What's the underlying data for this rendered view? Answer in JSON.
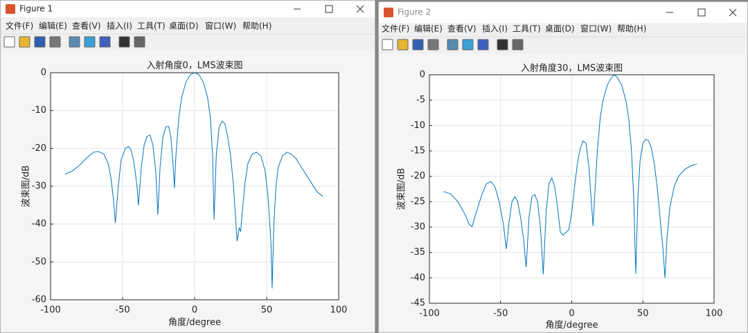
{
  "windows": [
    {
      "title": "Figure 1",
      "menu": [
        "文件(F)",
        "编辑(E)",
        "查看(V)",
        "插入(I)",
        "工具(T)",
        "桌面(D)",
        "窗口(W)",
        "帮助(H)"
      ]
    },
    {
      "title": "Figure 2",
      "menu": [
        "文件(F)",
        "编辑(E)",
        "查看(V)",
        "插入(I)",
        "工具(T)",
        "桌面(D)",
        "窗口(W)",
        "帮助(H)"
      ]
    }
  ],
  "chart_data": [
    {
      "type": "line",
      "title": "入射角度0，LMS波束图",
      "xlabel": "角度/degree",
      "ylabel": "波束图/dB",
      "color": "#0072bd",
      "grid": true,
      "xlim": [
        -100,
        100
      ],
      "xticks": [
        -100,
        -50,
        0,
        50,
        100
      ],
      "ylim": [
        -60,
        0
      ],
      "yticks": [
        -60,
        -50,
        -40,
        -30,
        -20,
        -10,
        0
      ],
      "x": [
        -90,
        -85,
        -80,
        -75,
        -70,
        -67,
        -63,
        -60,
        -58,
        -56.5,
        -55,
        -53,
        -51,
        -48,
        -46,
        -44,
        -42,
        -40,
        -39,
        -37,
        -35,
        -33,
        -31,
        -29,
        -27,
        -25.5,
        -24,
        -22,
        -20,
        -18,
        -16.5,
        -15,
        -14,
        -13,
        -11,
        -9,
        -6,
        -3,
        0,
        3,
        6,
        9,
        11,
        12.5,
        13.5,
        15,
        17,
        19,
        21,
        23,
        25,
        27,
        29.5,
        31,
        32,
        33,
        35,
        37,
        40,
        43,
        46,
        49,
        51,
        53,
        53.8,
        55,
        56.5,
        58,
        61,
        64,
        67,
        70,
        75,
        80,
        85,
        89
      ],
      "values": [
        -26.8,
        -26,
        -24.5,
        -22.5,
        -21,
        -20.8,
        -21.5,
        -24,
        -28,
        -33,
        -39.7,
        -30,
        -23,
        -20,
        -19.5,
        -20.5,
        -24,
        -30,
        -35,
        -25,
        -19,
        -16.8,
        -16.5,
        -19,
        -26,
        -37.5,
        -25,
        -17,
        -14.3,
        -14.2,
        -17,
        -24,
        -30.5,
        -22,
        -12,
        -6.5,
        -2.5,
        -0.5,
        0,
        -0.5,
        -2.5,
        -6.5,
        -12,
        -22,
        -38.8,
        -22,
        -14.5,
        -12.8,
        -13.5,
        -17,
        -22,
        -30,
        -44.5,
        -41,
        -42,
        -37,
        -29,
        -24,
        -21.5,
        -21,
        -22,
        -26,
        -33,
        -45,
        -57,
        -40,
        -30,
        -25,
        -22,
        -21,
        -21.5,
        -22.5,
        -25.5,
        -28.5,
        -31.5,
        -32.7
      ]
    },
    {
      "type": "line",
      "title": "入射角度30，LMS波束图",
      "xlabel": "角度/degree",
      "ylabel": "波束图/dB",
      "color": "#0072bd",
      "grid": true,
      "xlim": [
        -100,
        100
      ],
      "xticks": [
        -100,
        -50,
        0,
        50,
        100
      ],
      "ylim": [
        -45,
        0
      ],
      "yticks": [
        -45,
        -40,
        -35,
        -30,
        -25,
        -20,
        -15,
        -10,
        -5,
        0
      ],
      "x": [
        -90,
        -85,
        -80,
        -75,
        -72,
        -70,
        -67,
        -63,
        -60,
        -57,
        -54,
        -51,
        -48,
        -46,
        -44,
        -42,
        -40,
        -38,
        -36,
        -34,
        -32,
        -30,
        -28,
        -26,
        -24,
        -22,
        -20,
        -18,
        -16,
        -14,
        -12,
        -10,
        -8,
        -6,
        -4,
        -2,
        0,
        2,
        4,
        6,
        8,
        10,
        12,
        13.5,
        15,
        16.5,
        18,
        20,
        22,
        25,
        28,
        30,
        32,
        35,
        38,
        40,
        42,
        43.5,
        45,
        46.5,
        48,
        50,
        52,
        54,
        56,
        58,
        60,
        62,
        64,
        65.5,
        67,
        69,
        72,
        75,
        80,
        85,
        88
      ],
      "values": [
        -23,
        -23.5,
        -25,
        -27.5,
        -29.5,
        -29.9,
        -27,
        -23.5,
        -21.5,
        -21,
        -22,
        -25,
        -29.5,
        -34.3,
        -29,
        -25,
        -24,
        -25,
        -28,
        -32,
        -37.9,
        -28,
        -24,
        -23.6,
        -25,
        -30,
        -39.3,
        -27,
        -21.5,
        -20.3,
        -22,
        -26,
        -31,
        -31.6,
        -31,
        -30.5,
        -27,
        -22,
        -17.5,
        -14.5,
        -13,
        -13.5,
        -18,
        -24,
        -29.8,
        -22,
        -15,
        -8.5,
        -5,
        -2,
        -0.5,
        0,
        -0.5,
        -2,
        -5,
        -8.5,
        -15,
        -24,
        -39.2,
        -24,
        -17,
        -13.5,
        -12.7,
        -13,
        -14.5,
        -17.5,
        -22,
        -28,
        -34,
        -40,
        -32,
        -26,
        -22,
        -20,
        -18.5,
        -17.8,
        -17.6
      ]
    }
  ]
}
